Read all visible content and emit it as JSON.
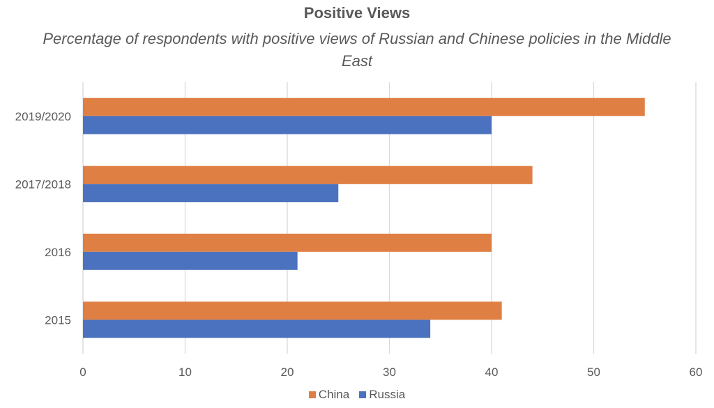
{
  "chart_data": {
    "type": "bar",
    "orientation": "horizontal",
    "title": "Positive Views",
    "subtitle": "Percentage of respondents with positive views of Russian and Chinese policies in the Middle East",
    "categories": [
      "2019/2020",
      "2017/2018",
      "2016",
      "2015"
    ],
    "series": [
      {
        "name": "China",
        "color": "#E07F44",
        "values": [
          55,
          44,
          40,
          41
        ]
      },
      {
        "name": "Russia",
        "color": "#4B72BE",
        "values": [
          40,
          25,
          21,
          34
        ]
      }
    ],
    "xlabel": "",
    "ylabel": "",
    "xlim": [
      0,
      60
    ],
    "xticks": [
      "0",
      "10",
      "20",
      "30",
      "40",
      "50",
      "60"
    ],
    "grid": true,
    "legend_position": "bottom"
  }
}
